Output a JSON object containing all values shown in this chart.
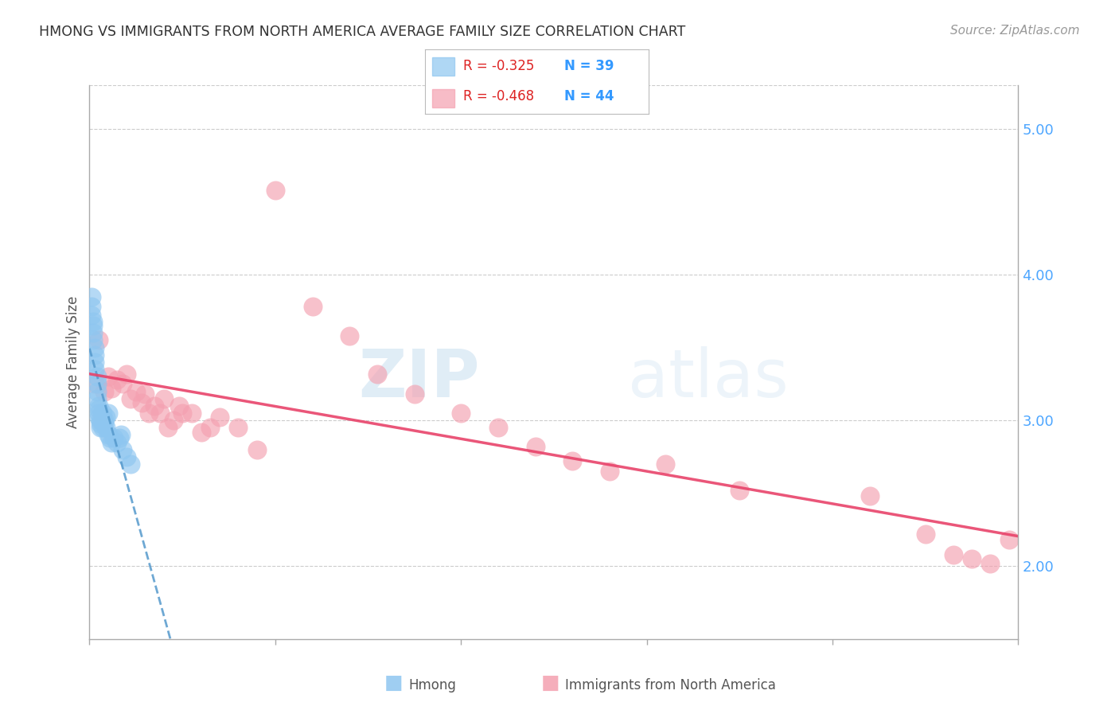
{
  "title": "HMONG VS IMMIGRANTS FROM NORTH AMERICA AVERAGE FAMILY SIZE CORRELATION CHART",
  "source": "Source: ZipAtlas.com",
  "ylabel": "Average Family Size",
  "x_min": 0.0,
  "x_max": 0.5,
  "y_min": 1.5,
  "y_max": 5.3,
  "right_yticks": [
    2.0,
    3.0,
    4.0,
    5.0
  ],
  "right_ytick_labels": [
    "2.00",
    "3.00",
    "4.00",
    "5.00"
  ],
  "hmong_R": "-0.325",
  "hmong_N": "39",
  "immigrant_R": "-0.468",
  "immigrant_N": "44",
  "hmong_color": "#8ec6f0",
  "immigrant_color": "#f4a0b0",
  "hmong_line_color": "#5599cc",
  "immigrant_line_color": "#e8436a",
  "watermark_zip": "ZIP",
  "watermark_atlas": "atlas",
  "legend_label_hmong": "Hmong",
  "legend_label_immigrant": "Immigrants from North America",
  "hmong_x": [
    0.001,
    0.001,
    0.001,
    0.002,
    0.002,
    0.002,
    0.002,
    0.003,
    0.003,
    0.003,
    0.003,
    0.004,
    0.004,
    0.004,
    0.004,
    0.005,
    0.005,
    0.005,
    0.005,
    0.006,
    0.006,
    0.006,
    0.007,
    0.007,
    0.008,
    0.008,
    0.009,
    0.009,
    0.01,
    0.01,
    0.011,
    0.012,
    0.013,
    0.015,
    0.016,
    0.017,
    0.018,
    0.02,
    0.022
  ],
  "hmong_y": [
    3.85,
    3.78,
    3.72,
    3.68,
    3.65,
    3.6,
    3.55,
    3.5,
    3.45,
    3.4,
    3.35,
    3.3,
    3.25,
    3.2,
    3.15,
    3.1,
    3.08,
    3.05,
    3.02,
    3.0,
    2.98,
    2.95,
    3.05,
    2.95,
    3.0,
    2.98,
    3.02,
    2.95,
    3.05,
    2.9,
    2.88,
    2.85,
    2.88,
    2.85,
    2.88,
    2.9,
    2.8,
    2.75,
    2.7
  ],
  "immigrant_x": [
    0.003,
    0.005,
    0.008,
    0.01,
    0.012,
    0.015,
    0.018,
    0.02,
    0.022,
    0.025,
    0.028,
    0.03,
    0.032,
    0.035,
    0.038,
    0.04,
    0.042,
    0.045,
    0.048,
    0.05,
    0.055,
    0.06,
    0.065,
    0.07,
    0.08,
    0.09,
    0.1,
    0.12,
    0.14,
    0.155,
    0.175,
    0.2,
    0.22,
    0.24,
    0.26,
    0.28,
    0.31,
    0.35,
    0.42,
    0.45,
    0.465,
    0.475,
    0.485,
    0.495
  ],
  "immigrant_y": [
    3.25,
    3.55,
    3.2,
    3.3,
    3.22,
    3.28,
    3.25,
    3.32,
    3.15,
    3.2,
    3.12,
    3.18,
    3.05,
    3.1,
    3.05,
    3.15,
    2.95,
    3.0,
    3.1,
    3.05,
    3.05,
    2.92,
    2.95,
    3.02,
    2.95,
    2.8,
    4.58,
    3.78,
    3.58,
    3.32,
    3.18,
    3.05,
    2.95,
    2.82,
    2.72,
    2.65,
    2.7,
    2.52,
    2.48,
    2.22,
    2.08,
    2.05,
    2.02,
    2.18
  ]
}
